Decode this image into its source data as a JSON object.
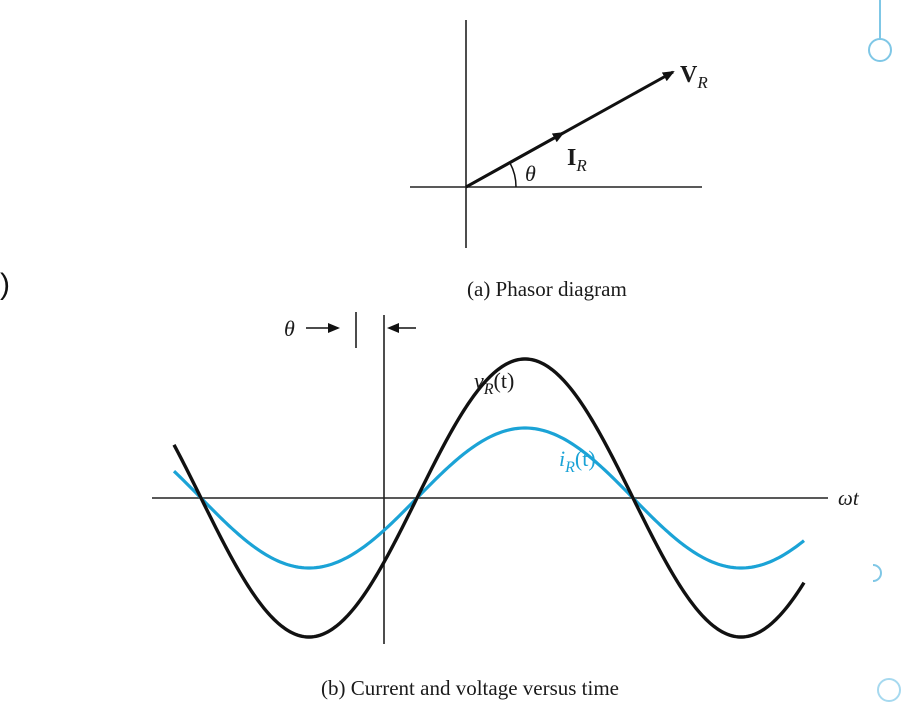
{
  "slide": {
    "stray_paren": ")",
    "accent_color": "#7fc7e6"
  },
  "phasor": {
    "caption": "(a) Phasor diagram",
    "voltage_label": "V",
    "voltage_sub": "R",
    "current_label": "I",
    "current_sub": "R",
    "angle_label": "θ"
  },
  "waveform": {
    "caption": "(b) Current and voltage versus time",
    "theta_label": "θ",
    "axis_label": "ωt",
    "voltage_fn": "v",
    "voltage_sub": "R",
    "voltage_arg": "(t)",
    "current_fn": "i",
    "current_sub": "R",
    "current_arg": "(t)",
    "voltage_color": "#111111",
    "current_color": "#1ba3d6"
  }
}
